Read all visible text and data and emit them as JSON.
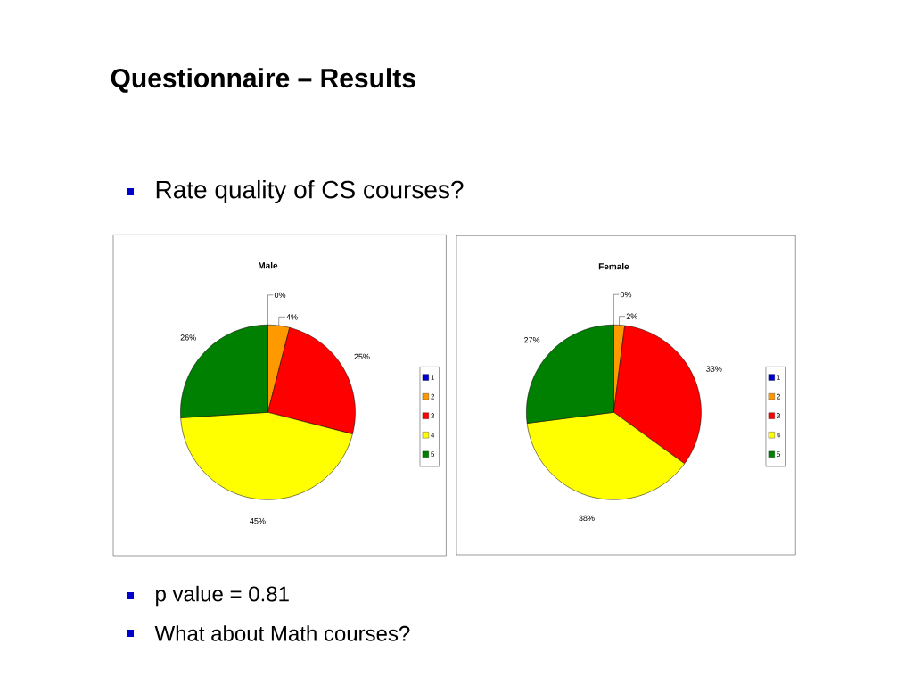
{
  "chart_data": [
    {
      "type": "other",
      "title": "Questionnaire – Results",
      "annotations": [
        "Rate quality of CS courses?",
        "p value = 0.81",
        "What about Math courses?"
      ]
    },
    {
      "type": "pie",
      "title": "Male",
      "categories": [
        "1",
        "2",
        "3",
        "4",
        "5"
      ],
      "values": [
        0,
        4,
        25,
        45,
        26
      ],
      "colors": [
        "#0000cc",
        "#ff9900",
        "#ff0000",
        "#ffff00",
        "#008000"
      ],
      "value_labels": [
        "0%",
        "4%",
        "25%",
        "45%",
        "26%"
      ],
      "legend": "right"
    },
    {
      "type": "pie",
      "title": "Female",
      "categories": [
        "1",
        "2",
        "3",
        "4",
        "5"
      ],
      "values": [
        0,
        2,
        33,
        38,
        27
      ],
      "colors": [
        "#0000cc",
        "#ff9900",
        "#ff0000",
        "#ffff00",
        "#008000"
      ],
      "value_labels": [
        "0%",
        "2%",
        "33%",
        "38%",
        "27%"
      ],
      "legend": "right"
    }
  ]
}
